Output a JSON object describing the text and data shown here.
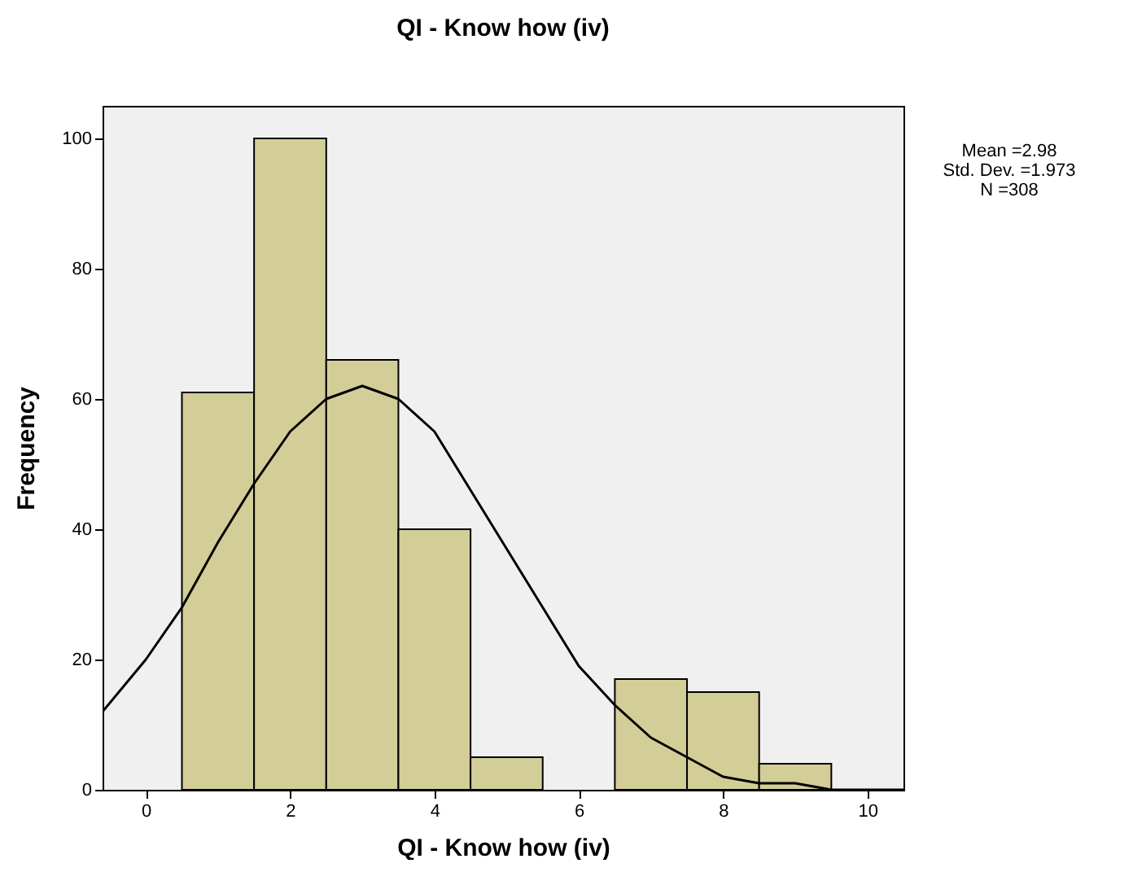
{
  "chart_data": {
    "type": "histogram",
    "title": "QI - Know how (iv)",
    "xlabel": "QI - Know how (iv)",
    "ylabel": "Frequency",
    "bins": [
      0.5,
      1.5,
      2.5,
      3.5,
      4.5,
      5.5,
      6.5,
      7.5,
      8.5,
      9.5
    ],
    "values": [
      61,
      100,
      66,
      40,
      5,
      0,
      17,
      15,
      4
    ],
    "color": "#d3ce97",
    "series": [
      {
        "type": "line",
        "color": "#000000",
        "x": [
          -0.6,
          0,
          0.5,
          1,
          1.5,
          2,
          2.5,
          3,
          3.5,
          4,
          4.5,
          5,
          5.5,
          6,
          6.5,
          7,
          7.5,
          8,
          8.5,
          9,
          9.5,
          10,
          10.5
        ],
        "values": [
          12,
          20,
          28,
          38,
          47,
          55,
          60,
          62,
          60,
          55,
          46,
          37,
          28,
          19,
          13,
          8,
          5,
          2,
          1,
          1,
          0,
          0,
          0
        ]
      }
    ],
    "xlim": [
      -0.6,
      10.5
    ],
    "xticks": [
      0,
      2,
      4,
      6,
      8,
      10
    ],
    "ylim": [
      0,
      105
    ],
    "yticks": [
      0,
      20,
      40,
      60,
      80,
      100
    ],
    "grid": false,
    "annotations": [
      "Mean =2.98",
      "Std. Dev. =1.973",
      "N =308"
    ]
  }
}
